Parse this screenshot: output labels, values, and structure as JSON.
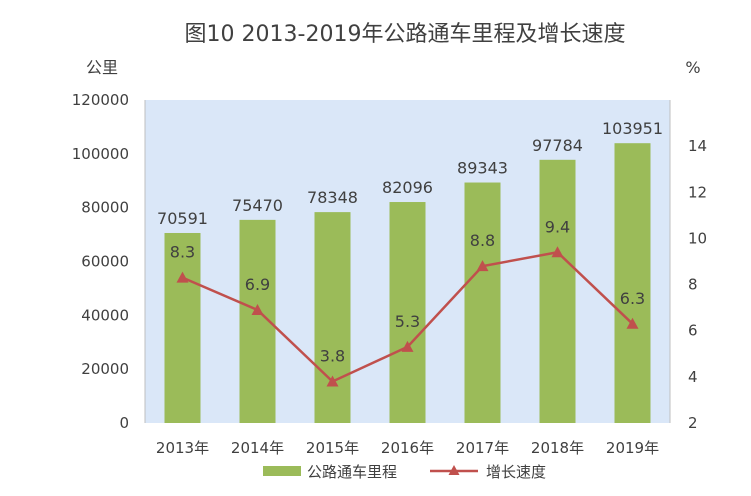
{
  "chart_data": {
    "type": "bar+line",
    "title": "图10  2013-2019年公路通车里程及增长速度",
    "categories": [
      "2013年",
      "2014年",
      "2015年",
      "2016年",
      "2017年",
      "2018年",
      "2019年"
    ],
    "series": [
      {
        "name": "公路通车里程",
        "type": "bar",
        "axis": "left",
        "values": [
          70591,
          75470,
          78348,
          82096,
          89343,
          97784,
          103951
        ],
        "color": "#9bbb59"
      },
      {
        "name": "增长速度",
        "type": "line",
        "axis": "right",
        "marker": "triangle",
        "values": [
          8.3,
          6.9,
          3.8,
          5.3,
          8.8,
          9.4,
          6.3
        ],
        "color": "#c0504d"
      }
    ],
    "ylabel_left": "公里",
    "ylabel_right": "%",
    "ylim_left": [
      0,
      120000
    ],
    "yticks_left": [
      0,
      20000,
      40000,
      60000,
      80000,
      100000,
      120000
    ],
    "ylim_right": [
      2,
      16
    ],
    "yticks_right": [
      2,
      4,
      6,
      8,
      10,
      12,
      14
    ],
    "plot_background": "#dae7f8",
    "grid": false,
    "legend_position": "bottom"
  }
}
